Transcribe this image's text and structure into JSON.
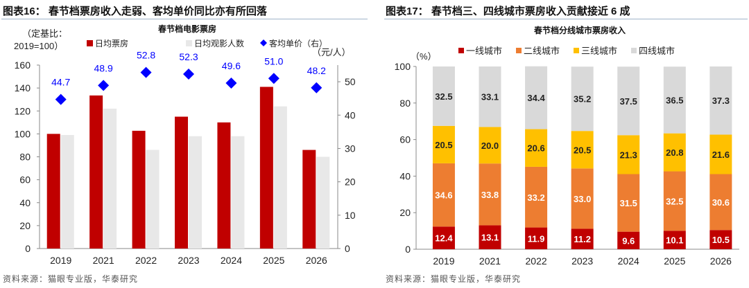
{
  "left": {
    "figure_title": "图表16：  春节档票房收入走弱、客均单价同比亦有所回落",
    "source": "资料来源：猫眼专业版，华泰研究"
  },
  "right": {
    "figure_title": "图表17：  春节档三、四线城市票房收入贡献接近 6 成",
    "source": "资料来源：猫眼专业版，华泰研究"
  },
  "chart_data": [
    {
      "type": "bar",
      "title": "春节档电影票房",
      "ylabel": "（定基比：\n2019=100）",
      "ylabel_line1": "（定基比：",
      "ylabel_line2": "2019=100）",
      "y2label": "（元/人）",
      "categories": [
        "2019",
        "2021",
        "2022",
        "2023",
        "2024",
        "2025",
        "2026"
      ],
      "ylim": [
        0,
        160
      ],
      "yticks": [
        0,
        20,
        40,
        60,
        80,
        100,
        120,
        140,
        160
      ],
      "y2lim": [
        0,
        55
      ],
      "y2ticks": [
        0,
        10,
        20,
        30,
        40,
        50
      ],
      "legend": "top",
      "series": [
        {
          "name": "日均票房",
          "kind": "bar",
          "color": "#c00000",
          "values": [
            100,
            133.5,
            102.7,
            115,
            110,
            141,
            86
          ]
        },
        {
          "name": "日均观影人数",
          "kind": "bar",
          "color": "#e8e8e8",
          "values": [
            99,
            122,
            86,
            98,
            98,
            124,
            80
          ]
        },
        {
          "name": "客均单价（右）",
          "kind": "scatter",
          "axis": "right",
          "color": "#0000ff",
          "values": [
            44.7,
            48.9,
            52.8,
            52.3,
            49.6,
            51.0,
            48.2
          ],
          "labels": [
            "44.7",
            "48.9",
            "52.8",
            "52.3",
            "49.6",
            "51.0",
            "48.2"
          ]
        }
      ]
    },
    {
      "type": "stacked_bar",
      "title": "春节档分线城市票房收入",
      "ylabel": "（%）",
      "categories": [
        "2019",
        "2021",
        "2022",
        "2023",
        "2024",
        "2025",
        "2026"
      ],
      "ylim": [
        0,
        100
      ],
      "yticks": [
        0,
        20,
        40,
        60,
        80,
        100
      ],
      "legend": "top",
      "series": [
        {
          "name": "一线城市",
          "color": "#c00000",
          "label_color": "#ffffff",
          "values": [
            12.4,
            13.1,
            11.9,
            11.2,
            9.6,
            10.1,
            10.5
          ]
        },
        {
          "name": "二线城市",
          "color": "#ed7d31",
          "label_color": "#ffffff",
          "values": [
            34.6,
            33.8,
            33.2,
            33.0,
            31.5,
            32.5,
            30.6
          ]
        },
        {
          "name": "三线城市",
          "color": "#ffc000",
          "label_color": "#222222",
          "values": [
            20.5,
            20.0,
            20.6,
            20.5,
            21.3,
            20.8,
            21.6
          ]
        },
        {
          "name": "四线城市",
          "color": "#d9d9d9",
          "label_color": "#222222",
          "values": [
            32.5,
            33.1,
            34.4,
            35.2,
            37.5,
            36.5,
            37.3
          ]
        }
      ]
    }
  ]
}
